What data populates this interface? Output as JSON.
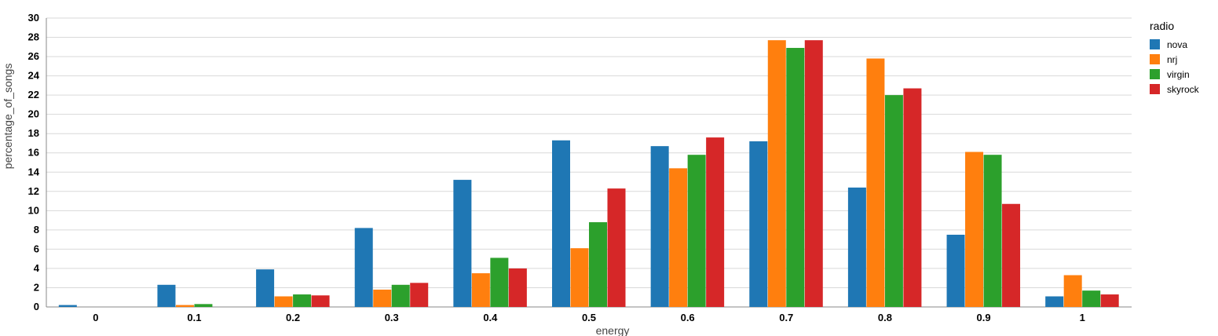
{
  "chart_data": {
    "type": "bar",
    "xlabel": "energy",
    "ylabel": "percentage_of_songs",
    "ylim": [
      0,
      30
    ],
    "yticks": [
      0,
      2,
      4,
      6,
      8,
      10,
      12,
      14,
      16,
      18,
      20,
      22,
      24,
      26,
      28,
      30
    ],
    "categories": [
      "0",
      "0.1",
      "0.2",
      "0.3",
      "0.4",
      "0.5",
      "0.6",
      "0.7",
      "0.8",
      "0.9",
      "1"
    ],
    "legend_title": "radio",
    "legend_position": "top-right",
    "grid": true,
    "series": [
      {
        "name": "nova",
        "color": "#1f77b4",
        "values": [
          0.2,
          2.3,
          3.9,
          8.2,
          13.2,
          17.3,
          16.7,
          17.2,
          12.4,
          7.5,
          1.1
        ]
      },
      {
        "name": "nrj",
        "color": "#ff7f0e",
        "values": [
          0,
          0.2,
          1.1,
          1.8,
          3.5,
          6.1,
          14.4,
          27.7,
          25.8,
          16.1,
          3.3
        ]
      },
      {
        "name": "virgin",
        "color": "#2ca02c",
        "values": [
          0,
          0.3,
          1.3,
          2.3,
          5.1,
          8.8,
          15.8,
          26.9,
          22.0,
          15.8,
          1.7
        ]
      },
      {
        "name": "skyrock",
        "color": "#d62728",
        "values": [
          0,
          0,
          1.2,
          2.5,
          4.0,
          12.3,
          17.6,
          27.7,
          22.7,
          10.7,
          1.3
        ]
      }
    ]
  }
}
